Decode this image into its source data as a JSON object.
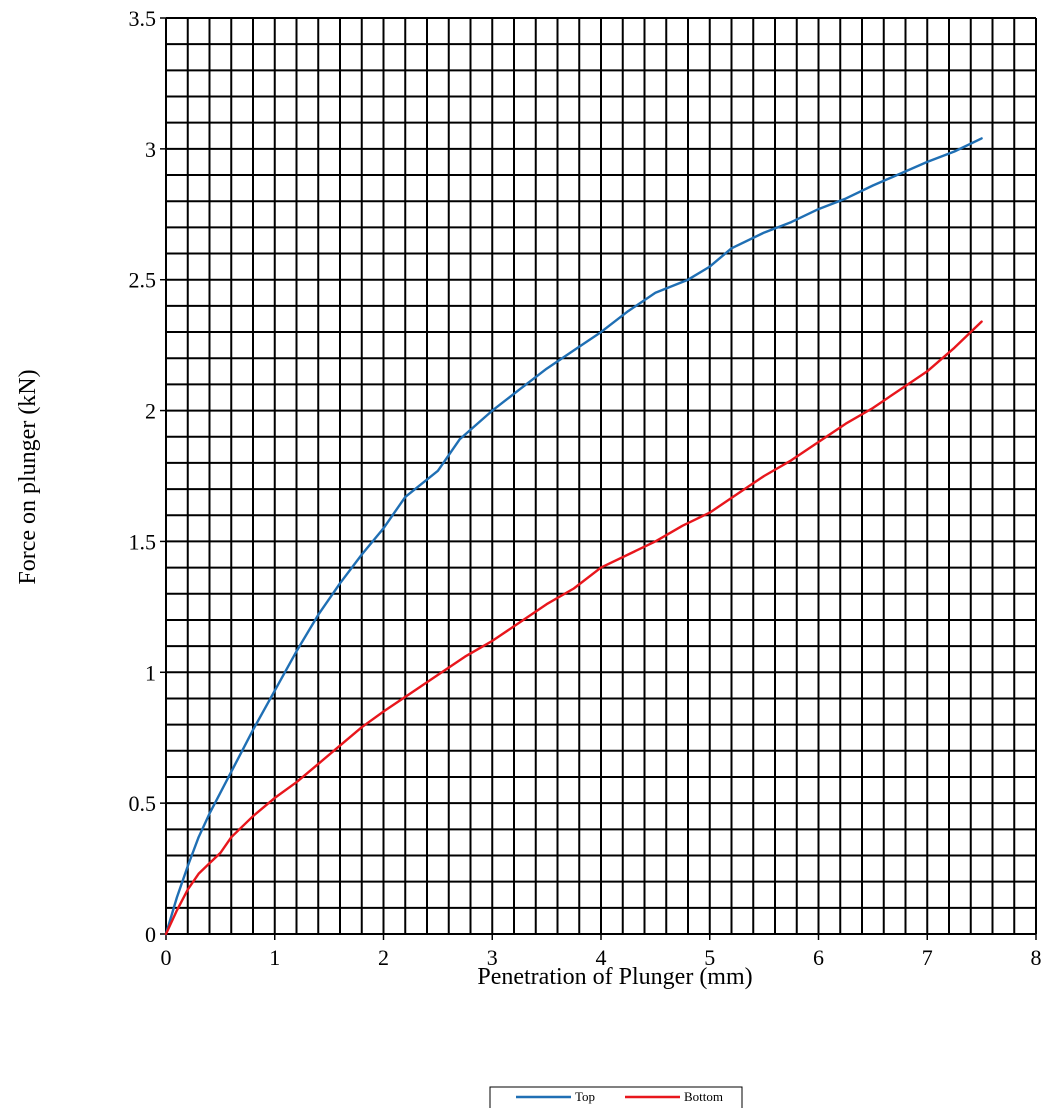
{
  "chart_data": {
    "type": "line",
    "title": "",
    "xlabel": "Penetration of Plunger (mm)",
    "ylabel": "Force on plunger (kN)",
    "xlim": [
      0,
      8
    ],
    "ylim": [
      0,
      3.5
    ],
    "x_ticks": [
      "0",
      "1",
      "2",
      "3",
      "4",
      "5",
      "6",
      "7",
      "8"
    ],
    "y_ticks": [
      "0",
      "0.5",
      "1",
      "1.5",
      "2",
      "2.5",
      "3",
      "3.5"
    ],
    "x_minor_step": 0.2,
    "y_minor_step": 0.1,
    "grid": true,
    "legend_position": "bottom-center",
    "series": [
      {
        "name": "Top",
        "color": "#1f6fb4",
        "points": [
          [
            0,
            0
          ],
          [
            0.1,
            0.14
          ],
          [
            0.2,
            0.26
          ],
          [
            0.3,
            0.37
          ],
          [
            0.4,
            0.46
          ],
          [
            0.5,
            0.54
          ],
          [
            0.6,
            0.62
          ],
          [
            0.8,
            0.78
          ],
          [
            1.0,
            0.93
          ],
          [
            1.2,
            1.08
          ],
          [
            1.4,
            1.22
          ],
          [
            1.6,
            1.34
          ],
          [
            1.8,
            1.45
          ],
          [
            2.0,
            1.55
          ],
          [
            2.2,
            1.67
          ],
          [
            2.5,
            1.77
          ],
          [
            2.7,
            1.89
          ],
          [
            3.0,
            2.0
          ],
          [
            3.25,
            2.08
          ],
          [
            3.5,
            2.16
          ],
          [
            3.75,
            2.23
          ],
          [
            4.0,
            2.3
          ],
          [
            4.25,
            2.38
          ],
          [
            4.5,
            2.45
          ],
          [
            4.8,
            2.5
          ],
          [
            5.0,
            2.55
          ],
          [
            5.2,
            2.62
          ],
          [
            5.5,
            2.68
          ],
          [
            5.75,
            2.72
          ],
          [
            6.0,
            2.77
          ],
          [
            6.25,
            2.81
          ],
          [
            6.5,
            2.86
          ],
          [
            7.0,
            2.95
          ],
          [
            7.25,
            2.99
          ],
          [
            7.5,
            3.04
          ]
        ]
      },
      {
        "name": "Bottom",
        "color": "#e8161c",
        "points": [
          [
            0,
            0
          ],
          [
            0.1,
            0.09
          ],
          [
            0.2,
            0.17
          ],
          [
            0.3,
            0.23
          ],
          [
            0.4,
            0.27
          ],
          [
            0.5,
            0.31
          ],
          [
            0.6,
            0.37
          ],
          [
            0.8,
            0.45
          ],
          [
            1.0,
            0.52
          ],
          [
            1.2,
            0.58
          ],
          [
            1.4,
            0.65
          ],
          [
            1.6,
            0.72
          ],
          [
            1.8,
            0.79
          ],
          [
            2.0,
            0.85
          ],
          [
            2.25,
            0.92
          ],
          [
            2.5,
            0.99
          ],
          [
            2.75,
            1.06
          ],
          [
            3.0,
            1.12
          ],
          [
            3.25,
            1.19
          ],
          [
            3.5,
            1.26
          ],
          [
            3.75,
            1.32
          ],
          [
            4.0,
            1.4
          ],
          [
            4.25,
            1.45
          ],
          [
            4.5,
            1.5
          ],
          [
            4.75,
            1.56
          ],
          [
            5.0,
            1.61
          ],
          [
            5.25,
            1.68
          ],
          [
            5.5,
            1.75
          ],
          [
            5.75,
            1.81
          ],
          [
            6.0,
            1.88
          ],
          [
            6.25,
            1.95
          ],
          [
            6.5,
            2.01
          ],
          [
            6.75,
            2.08
          ],
          [
            7.0,
            2.15
          ],
          [
            7.25,
            2.24
          ],
          [
            7.5,
            2.34
          ]
        ]
      }
    ]
  }
}
